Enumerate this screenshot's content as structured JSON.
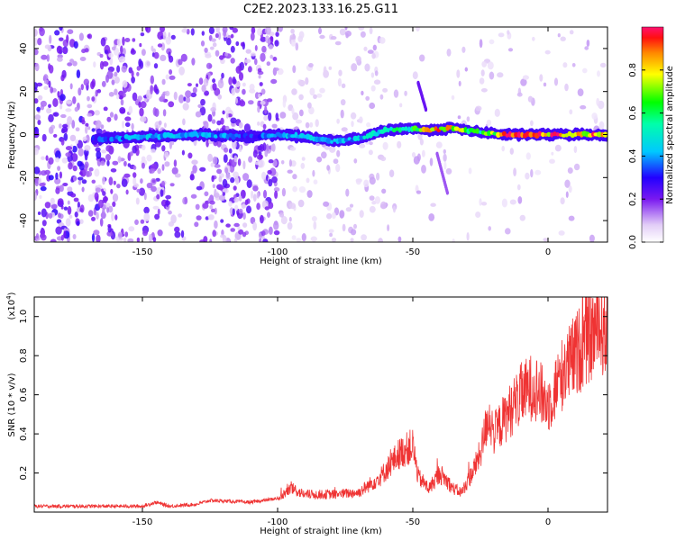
{
  "title": "C2E2.2023.133.16.25.G11",
  "chart_data": [
    {
      "type": "heatmap",
      "xlabel": "Height of straight line (km)",
      "ylabel": "Frequency (Hz)",
      "xlim": [
        -190,
        22
      ],
      "ylim": [
        -50,
        50
      ],
      "xticks": [
        -150,
        -100,
        -50,
        0
      ],
      "yticks": [
        -40,
        -20,
        0,
        20,
        40
      ],
      "colorbar": {
        "label": "Normalized spectral amplitude",
        "range": [
          0,
          1
        ],
        "ticks": [
          0.0,
          0.2,
          0.4,
          0.6,
          0.8
        ]
      },
      "ridge": {
        "description_x": [
          -165,
          -150,
          -130,
          -110,
          -100,
          -90,
          -80,
          -70,
          -60,
          -50,
          -45,
          -35,
          -25,
          -15,
          0,
          10,
          20
        ],
        "frequency_hz": [
          -2,
          -1,
          0,
          -1,
          0,
          -1,
          -3,
          -2,
          2,
          3,
          2,
          3,
          1,
          0,
          0,
          0,
          0
        ],
        "peak_amplitude": [
          0.35,
          0.45,
          0.45,
          0.35,
          0.4,
          0.45,
          0.45,
          0.45,
          0.55,
          0.6,
          0.9,
          0.85,
          0.6,
          0.95,
          0.95,
          0.9,
          0.9
        ]
      },
      "chirps": [
        {
          "x": [
            -48,
            -45
          ],
          "y": [
            24,
            11
          ]
        },
        {
          "x": [
            -41,
            -37
          ],
          "y": [
            -9,
            -28
          ]
        }
      ]
    },
    {
      "type": "line",
      "xlabel": "Height of straight line (km)",
      "ylabel": "SNR (10 * v/v)",
      "scale_label": "(x10",
      "scale_exponent": "4",
      "scale_suffix": ")",
      "xlim": [
        -190,
        22
      ],
      "ylim": [
        0.0,
        1.1
      ],
      "xticks": [
        -150,
        -100,
        -50,
        0
      ],
      "yticks": [
        0.2,
        0.4,
        0.6,
        0.8,
        1.0
      ],
      "color": "#ef3333",
      "envelope": {
        "x": [
          -190,
          -150,
          -145,
          -140,
          -130,
          -125,
          -110,
          -100,
          -95,
          -90,
          -80,
          -70,
          -62,
          -55,
          -50,
          -48,
          -44,
          -40,
          -35,
          -32,
          -28,
          -25,
          -22,
          -20,
          -15,
          -10,
          -5,
          0,
          5,
          10,
          15,
          20,
          22
        ],
        "y": [
          0.03,
          0.03,
          0.05,
          0.03,
          0.04,
          0.06,
          0.05,
          0.07,
          0.12,
          0.09,
          0.09,
          0.1,
          0.18,
          0.3,
          0.34,
          0.18,
          0.12,
          0.2,
          0.12,
          0.1,
          0.2,
          0.3,
          0.5,
          0.4,
          0.5,
          0.6,
          0.65,
          0.55,
          0.7,
          0.8,
          0.9,
          0.95,
          0.92
        ]
      }
    }
  ]
}
